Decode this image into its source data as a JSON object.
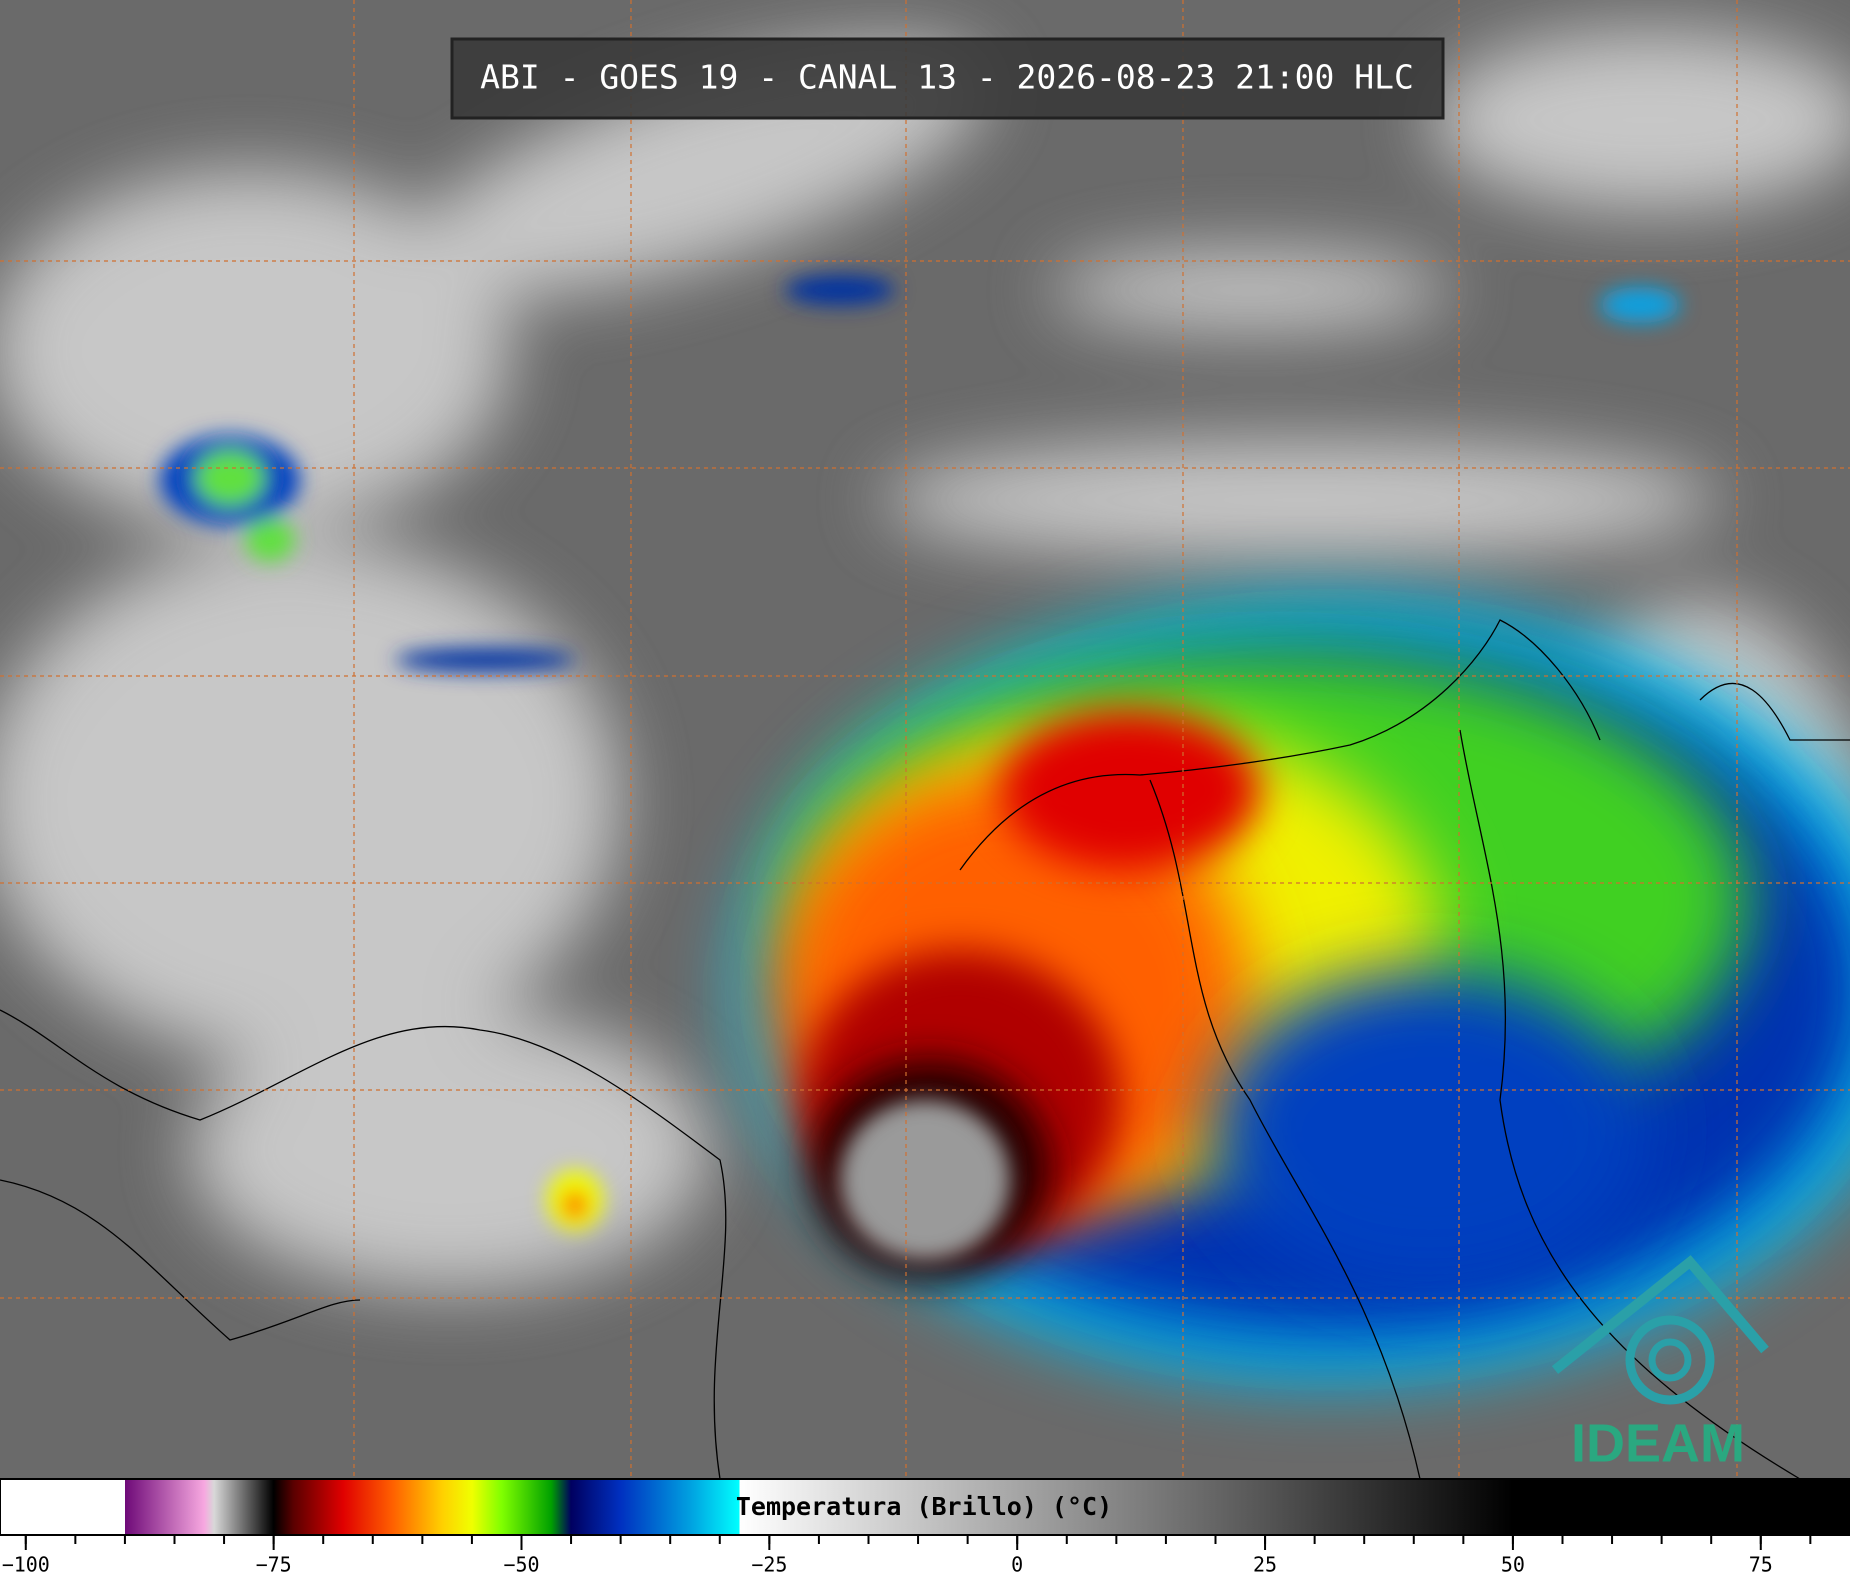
{
  "header": {
    "title": "ABI - GOES 19 - CANAL 13 - 2026-08-23 21:00 HLC"
  },
  "logo": {
    "text": "IDEAM"
  },
  "colorbar": {
    "label": "Temperatura (Brillo) (°C)",
    "range": [
      -102.6,
      84.0
    ],
    "ticks": [
      {
        "value": -100,
        "label": "−100"
      },
      {
        "value": -75,
        "label": "−75"
      },
      {
        "value": -50,
        "label": "−50"
      },
      {
        "value": -25,
        "label": "−25"
      },
      0,
      25,
      50,
      75
    ],
    "minor_tick_step": 5,
    "stops": [
      [
        -100,
        "#ffffff"
      ],
      [
        -90,
        "#ffffff"
      ],
      [
        -90,
        "#6e0a78"
      ],
      [
        -82,
        "#f7a8e0"
      ],
      [
        -81,
        "#d8d8d8"
      ],
      [
        -75,
        "#000000"
      ],
      [
        -73,
        "#5a0000"
      ],
      [
        -68,
        "#e00000"
      ],
      [
        -63,
        "#ff6000"
      ],
      [
        -58,
        "#ffd000"
      ],
      [
        -55,
        "#f0ff00"
      ],
      [
        -52,
        "#80ff00"
      ],
      [
        -47,
        "#00a000"
      ],
      [
        -45,
        "#000060"
      ],
      [
        -40,
        "#0030c0"
      ],
      [
        -33,
        "#00a0e0"
      ],
      [
        -28,
        "#00ffff"
      ],
      [
        -28,
        "#ffffff"
      ],
      [
        25,
        "#555555"
      ],
      [
        50,
        "#000000"
      ],
      [
        84,
        "#000000"
      ]
    ]
  }
}
